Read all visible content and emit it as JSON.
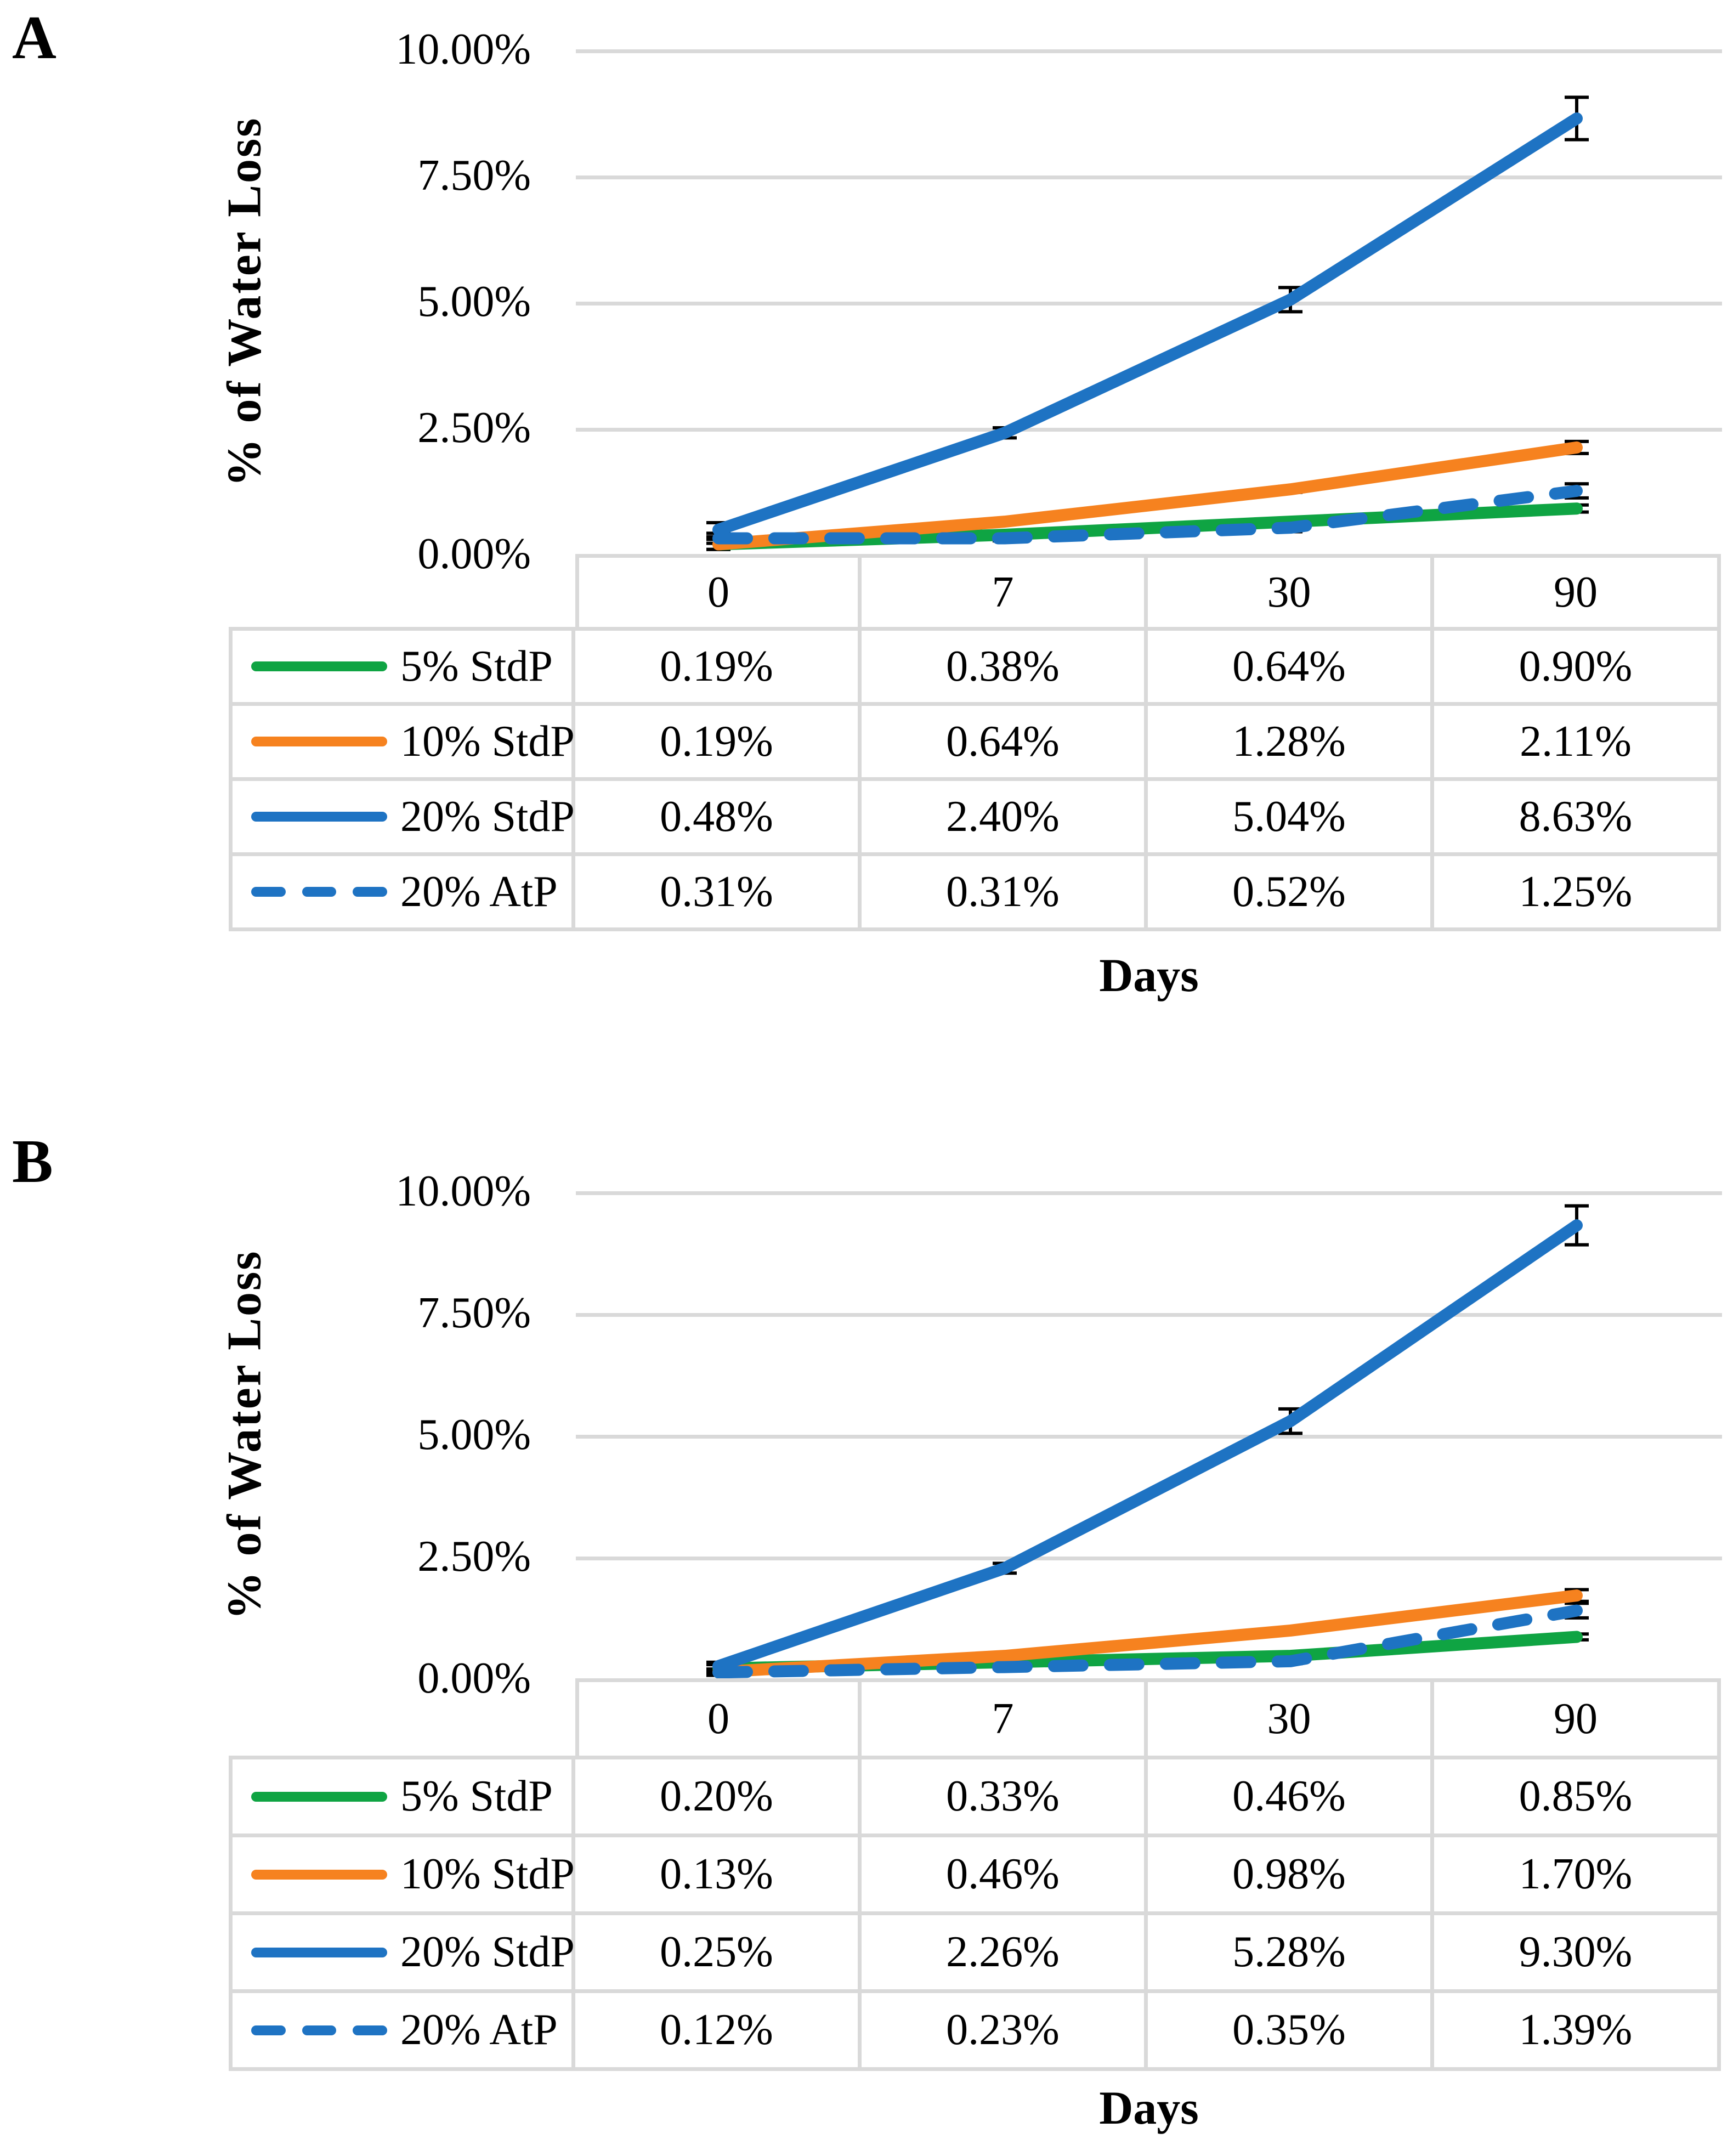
{
  "chart_data": [
    {
      "type": "line",
      "panel_label": "A",
      "xlabel": "Days",
      "ylabel": "% of Water Loss",
      "categories": [
        "0",
        "7",
        "30",
        "90"
      ],
      "y_ticks": [
        "10.00%",
        "7.50%",
        "5.00%",
        "2.50%",
        "0.00%"
      ],
      "ylim_pct": [
        0,
        10
      ],
      "grid": "horizontal",
      "legend_position": "table-left-column",
      "error_bars": true,
      "series": [
        {
          "name": "5% StdP",
          "color": "#0FA443",
          "line_style": "solid",
          "values_pct": [
            0.19,
            0.38,
            0.64,
            0.9
          ],
          "value_labels": [
            "0.19%",
            "0.38%",
            "0.64%",
            "0.90%"
          ],
          "errors_pct": [
            0.1,
            0.03,
            0.04,
            0.07
          ]
        },
        {
          "name": "10% StdP",
          "color": "#F6821F",
          "line_style": "solid",
          "values_pct": [
            0.19,
            0.64,
            1.28,
            2.11
          ],
          "value_labels": [
            "0.19%",
            "0.64%",
            "1.28%",
            "2.11%"
          ],
          "errors_pct": [
            0.1,
            0.04,
            0.06,
            0.12
          ]
        },
        {
          "name": "20% StdP",
          "color": "#1E73C3",
          "line_style": "solid",
          "values_pct": [
            0.48,
            2.4,
            5.04,
            8.63
          ],
          "value_labels": [
            "0.48%",
            "2.40%",
            "5.04%",
            "8.63%"
          ],
          "errors_pct": [
            0.14,
            0.1,
            0.24,
            0.42
          ]
        },
        {
          "name": "20% AtP",
          "color": "#1E73C3",
          "line_style": "dashed",
          "values_pct": [
            0.31,
            0.31,
            0.52,
            1.25
          ],
          "value_labels": [
            "0.31%",
            "0.31%",
            "0.52%",
            "1.25%"
          ],
          "errors_pct": [
            0.1,
            0.05,
            0.08,
            0.14
          ]
        }
      ]
    },
    {
      "type": "line",
      "panel_label": "B",
      "xlabel": "Days",
      "ylabel": "% of Water Loss",
      "categories": [
        "0",
        "7",
        "30",
        "90"
      ],
      "y_ticks": [
        "10.00%",
        "7.50%",
        "5.00%",
        "2.50%",
        "0.00%"
      ],
      "ylim_pct": [
        0,
        10
      ],
      "grid": "horizontal",
      "legend_position": "table-left-column",
      "error_bars": true,
      "series": [
        {
          "name": "5% StdP",
          "color": "#0FA443",
          "line_style": "solid",
          "values_pct": [
            0.2,
            0.33,
            0.46,
            0.85
          ],
          "value_labels": [
            "0.20%",
            "0.33%",
            "0.46%",
            "0.85%"
          ],
          "errors_pct": [
            0.08,
            0.03,
            0.03,
            0.06
          ]
        },
        {
          "name": "10% StdP",
          "color": "#F6821F",
          "line_style": "solid",
          "values_pct": [
            0.13,
            0.46,
            0.98,
            1.7
          ],
          "value_labels": [
            "0.13%",
            "0.46%",
            "0.98%",
            "1.70%"
          ],
          "errors_pct": [
            0.06,
            0.03,
            0.05,
            0.12
          ]
        },
        {
          "name": "20% StdP",
          "color": "#1E73C3",
          "line_style": "solid",
          "values_pct": [
            0.25,
            2.26,
            5.28,
            9.3
          ],
          "value_labels": [
            "0.25%",
            "2.26%",
            "5.28%",
            "9.30%"
          ],
          "errors_pct": [
            0.08,
            0.1,
            0.25,
            0.4
          ]
        },
        {
          "name": "20% AtP",
          "color": "#1E73C3",
          "line_style": "dashed",
          "values_pct": [
            0.12,
            0.23,
            0.35,
            1.39
          ],
          "value_labels": [
            "0.12%",
            "0.23%",
            "0.35%",
            "1.39%"
          ],
          "errors_pct": [
            0.06,
            0.03,
            0.05,
            0.15
          ]
        }
      ]
    }
  ],
  "style_tokens": {
    "gridline_color": "#D9D9D9",
    "error_bar_color": "#000000",
    "green": "#0FA443",
    "orange": "#F6821F",
    "blue": "#1E73C3"
  }
}
